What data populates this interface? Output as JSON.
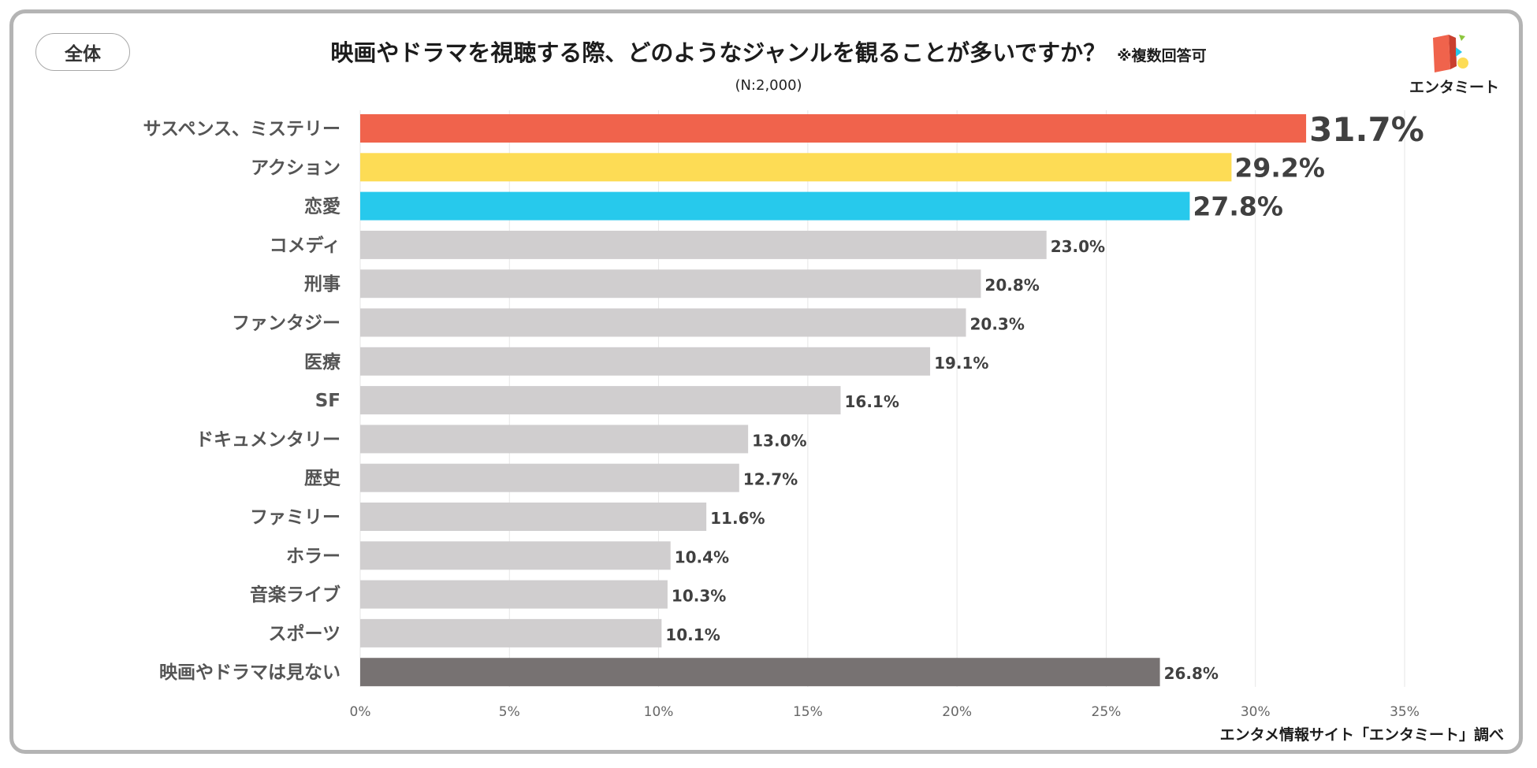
{
  "badge": {
    "label": "全体"
  },
  "header": {
    "title": "映画やドラマを視聴する際、どのようなジャンルを観ることが多いですか？",
    "note": "※複数回答可",
    "sample": "(N:2,000)"
  },
  "logo": {
    "text": "エンタミート"
  },
  "footer": {
    "source": "エンタメ情報サイト「エンタミート」調べ"
  },
  "colors": {
    "top1": "#f0634c",
    "top2": "#fddc55",
    "top3": "#27c9ec",
    "default": "#d0cecf",
    "none": "#777272",
    "top1_label": "#e8141c"
  },
  "chart_data": {
    "type": "bar",
    "orientation": "horizontal",
    "title": "映画やドラマを視聴する際、どのようなジャンルを観ることが多いですか？",
    "categories": [
      "サスペンス、ミステリー",
      "アクション",
      "恋愛",
      "コメディ",
      "刑事",
      "ファンタジー",
      "医療",
      "SF",
      "ドキュメンタリー",
      "歴史",
      "ファミリー",
      "ホラー",
      "音楽ライブ",
      "スポーツ",
      "映画やドラマは見ない"
    ],
    "values": [
      31.7,
      29.2,
      27.8,
      23.0,
      20.8,
      20.3,
      19.1,
      16.1,
      13.0,
      12.7,
      11.6,
      10.4,
      10.3,
      10.1,
      26.8
    ],
    "value_labels": [
      "31.7%",
      "29.2%",
      "27.8%",
      "23.0%",
      "20.8%",
      "20.3%",
      "19.1%",
      "16.1%",
      "13.0%",
      "12.7%",
      "11.6%",
      "10.4%",
      "10.3%",
      "10.1%",
      "26.8%"
    ],
    "xlim": [
      0,
      35
    ],
    "xticks": [
      0,
      5,
      10,
      15,
      20,
      25,
      30,
      35
    ],
    "xtick_labels": [
      "0%",
      "5%",
      "10%",
      "15%",
      "20%",
      "25%",
      "30%",
      "35%"
    ],
    "xlabel": "",
    "ylabel": "",
    "grid": true
  }
}
